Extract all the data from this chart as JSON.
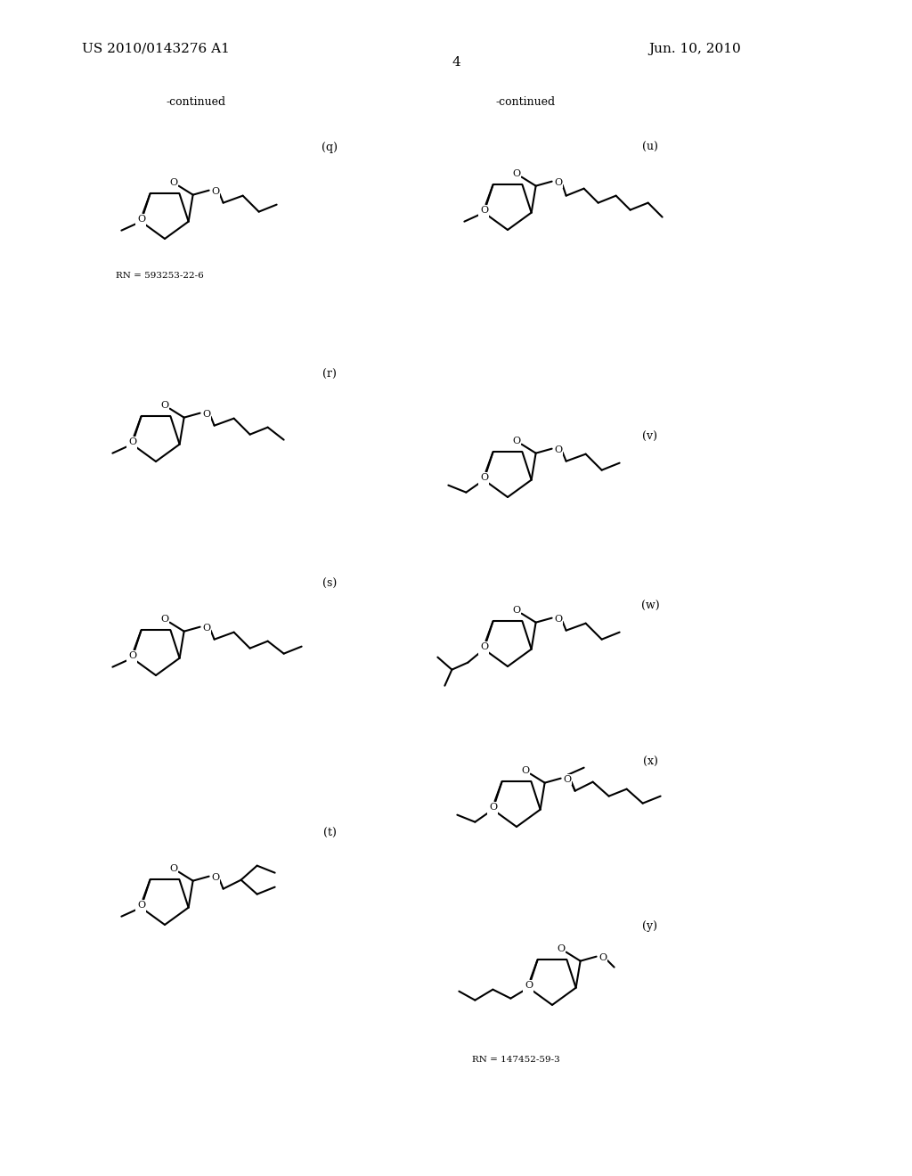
{
  "page_title_left": "US 2010/0143276 A1",
  "page_title_right": "Jun. 10, 2010",
  "page_number": "4",
  "background_color": "#ffffff",
  "text_color": "#000000",
  "continued_left": "-continued",
  "continued_right": "-continued",
  "labels": [
    "(q)",
    "(r)",
    "(s)",
    "(t)",
    "(u)",
    "(v)",
    "(w)",
    "(x)",
    "(y)"
  ],
  "rn_labels": [
    "RN = 593253-22-6",
    "RN = 147452-59-3"
  ],
  "figsize": [
    10.24,
    13.2
  ],
  "dpi": 100
}
